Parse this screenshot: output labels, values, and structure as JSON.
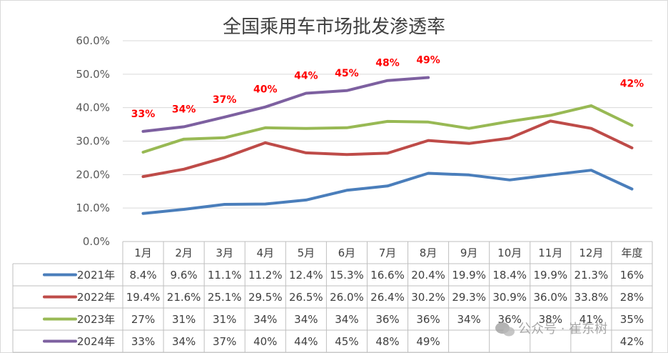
{
  "chart_data": {
    "type": "line",
    "title": "全国乘用车市场批发渗透率",
    "categories": [
      "1月",
      "2月",
      "3月",
      "4月",
      "5月",
      "6月",
      "7月",
      "8月",
      "9月",
      "10月",
      "11月",
      "12月",
      "年度"
    ],
    "yticks": [
      "60.0%",
      "50.0%",
      "40.0%",
      "30.0%",
      "20.0%",
      "10.0%",
      "0.0%"
    ],
    "ylim": [
      0,
      60
    ],
    "grid": true,
    "legend": "data-table-left",
    "series": [
      {
        "name": "2021年",
        "color": "#4a7ebb",
        "values": [
          8.4,
          9.6,
          11.1,
          11.2,
          12.4,
          15.3,
          16.6,
          20.4,
          19.9,
          18.4,
          19.9,
          21.3,
          15.7
        ],
        "table": [
          "8.4%",
          "9.6%",
          "11.1%",
          "11.2%",
          "12.4%",
          "15.3%",
          "16.6%",
          "20.4%",
          "19.9%",
          "18.4%",
          "19.9%",
          "21.3%",
          "16%"
        ]
      },
      {
        "name": "2022年",
        "color": "#be4b48",
        "values": [
          19.4,
          21.6,
          25.1,
          29.5,
          26.5,
          26.0,
          26.4,
          30.2,
          29.3,
          30.9,
          36.0,
          33.8,
          28.0
        ],
        "table": [
          "19.4%",
          "21.6%",
          "25.1%",
          "29.5%",
          "26.5%",
          "26.0%",
          "26.4%",
          "30.2%",
          "29.3%",
          "30.9%",
          "36.0%",
          "33.8%",
          "28%"
        ]
      },
      {
        "name": "2023年",
        "color": "#98b954",
        "values": [
          26.7,
          30.6,
          31.0,
          34.0,
          33.8,
          34.0,
          35.9,
          35.7,
          33.8,
          35.9,
          37.7,
          40.6,
          34.7
        ],
        "table": [
          "27%",
          "31%",
          "31%",
          "34%",
          "34%",
          "34%",
          "36%",
          "36%",
          "34%",
          "36%",
          "38%",
          "41%",
          "35%"
        ]
      },
      {
        "name": "2024年",
        "color": "#7d60a0",
        "values": [
          32.9,
          34.3,
          37.2,
          40.2,
          44.3,
          45.1,
          48.1,
          49.0,
          null,
          null,
          null,
          null,
          null
        ],
        "table": [
          "33%",
          "34%",
          "37%",
          "40%",
          "44%",
          "45%",
          "48%",
          "49%",
          "",
          "",
          "",
          "",
          "42%"
        ]
      }
    ],
    "annotations": [
      {
        "category": "1月",
        "text": "33%",
        "y": 32.9
      },
      {
        "category": "2月",
        "text": "34%",
        "y": 34.3
      },
      {
        "category": "3月",
        "text": "37%",
        "y": 37.2
      },
      {
        "category": "4月",
        "text": "40%",
        "y": 40.2
      },
      {
        "category": "5月",
        "text": "44%",
        "y": 44.3
      },
      {
        "category": "6月",
        "text": "45%",
        "y": 45.1
      },
      {
        "category": "7月",
        "text": "48%",
        "y": 48.1
      },
      {
        "category": "8月",
        "text": "49%",
        "y": 49.0
      },
      {
        "category": "年度",
        "text": "42%",
        "y": 42.0
      }
    ]
  },
  "watermark": "公众号 · 崔东树"
}
